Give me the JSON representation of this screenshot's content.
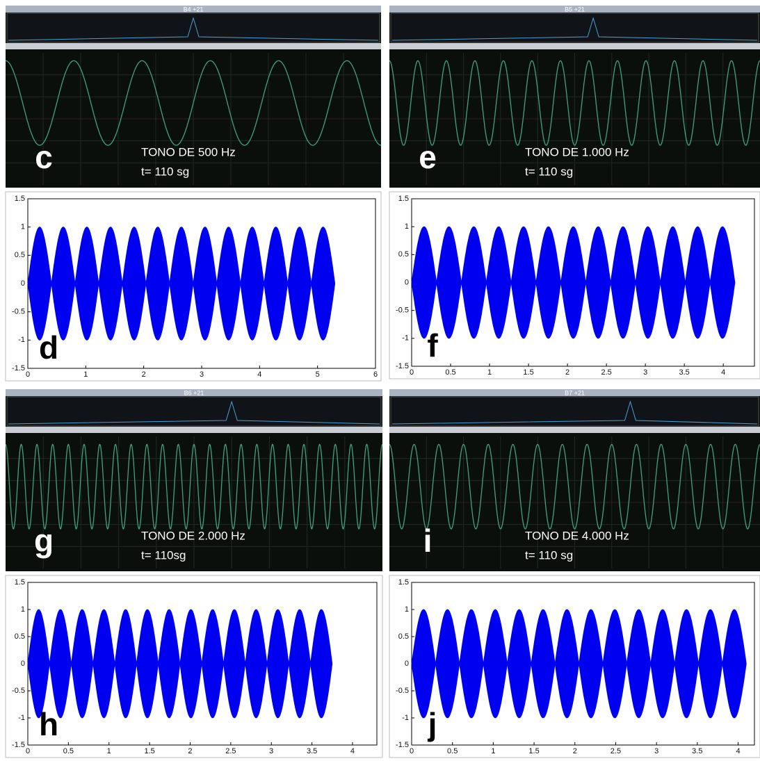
{
  "panels": [
    {
      "scope": {
        "title": "B4 +21",
        "letter": "c",
        "tone": "TONO  DE 500 Hz",
        "time": "t= 110 sg"
      },
      "plot": {
        "letter": "d",
        "xlim": [
          0,
          6
        ],
        "ylim": [
          -1.5,
          1.5
        ],
        "xticks": [
          0,
          1,
          2,
          3,
          4,
          5,
          6
        ],
        "yticks": [
          -1.5,
          -1,
          -0.5,
          0,
          0.5,
          1,
          1.5
        ]
      }
    },
    {
      "scope": {
        "title": "B5 +21",
        "letter": "e",
        "tone": "TONO  DE 1.000 Hz",
        "time": "t= 110 sg"
      },
      "plot": {
        "letter": "f",
        "xlim": [
          0,
          4.4
        ],
        "ylim": [
          -1.5,
          1.5
        ],
        "xticks": [
          0,
          0.5,
          1,
          1.5,
          2,
          2.5,
          3,
          3.5,
          4
        ],
        "yticks": [
          -1.5,
          -1,
          -0.5,
          0,
          0.5,
          1,
          1.5
        ]
      }
    },
    {
      "scope": {
        "title": "B6 +21",
        "letter": "g",
        "tone": "TONO  DE 2.000 Hz",
        "time": "t= 110sg"
      },
      "plot": {
        "letter": "h",
        "xlim": [
          0,
          4.3
        ],
        "ylim": [
          -1.5,
          1.5
        ],
        "xticks": [
          0,
          0.5,
          1,
          1.5,
          2,
          2.5,
          3,
          3.5,
          4
        ],
        "yticks": [
          -1.5,
          -1,
          -0.5,
          0,
          0.5,
          1,
          1.5
        ]
      }
    },
    {
      "scope": {
        "title": "B7 +21",
        "letter": "i",
        "tone": "TONO  DE 4.000 Hz",
        "time": "t= 110 sg"
      },
      "plot": {
        "letter": "j",
        "xlim": [
          0,
          4.2
        ],
        "ylim": [
          -1.5,
          1.5
        ],
        "xticks": [
          0,
          0.5,
          1,
          1.5,
          2,
          2.5,
          3,
          3.5,
          4
        ],
        "yticks": [
          -1.5,
          -1,
          -0.5,
          0,
          0.5,
          1,
          1.5
        ]
      }
    }
  ]
}
